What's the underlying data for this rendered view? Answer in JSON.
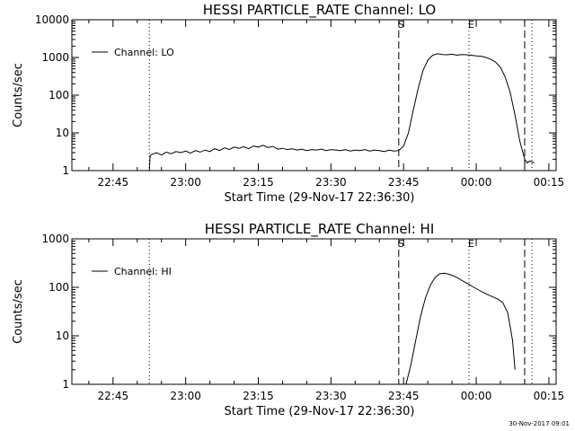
{
  "timestamp": "30-Nov-2017 09:01",
  "chart_data": [
    {
      "type": "line",
      "title": "HESSI PARTICLE_RATE Channel: LO",
      "xlabel": "Start Time (29-Nov-17 22:36:30)",
      "ylabel": "Counts/sec",
      "yscale": "log",
      "ylim": [
        1,
        10000
      ],
      "xlim": [
        "22:36:30",
        "00:16:30"
      ],
      "x_ticks": [
        "22:45",
        "23:00",
        "23:15",
        "23:30",
        "23:45",
        "00:00",
        "00:15"
      ],
      "y_ticks": [
        "1",
        "10",
        "100",
        "1000",
        "10000"
      ],
      "series": [
        {
          "name": "Channel: LO",
          "x": [
            "22:52:30",
            "22:52:40",
            "22:53:00",
            "22:54:00",
            "22:55:00",
            "22:56:00",
            "22:57:00",
            "22:58:00",
            "22:59:00",
            "23:00:00",
            "23:01:00",
            "23:02:00",
            "23:03:00",
            "23:04:00",
            "23:05:00",
            "23:06:00",
            "23:07:00",
            "23:08:00",
            "23:09:00",
            "23:10:00",
            "23:11:00",
            "23:12:00",
            "23:13:00",
            "23:14:00",
            "23:15:00",
            "23:16:00",
            "23:17:00",
            "23:18:00",
            "23:19:00",
            "23:20:00",
            "23:21:00",
            "23:22:00",
            "23:23:00",
            "23:24:00",
            "23:25:00",
            "23:26:00",
            "23:27:00",
            "23:28:00",
            "23:29:00",
            "23:30:00",
            "23:31:00",
            "23:32:00",
            "23:33:00",
            "23:34:00",
            "23:35:00",
            "23:36:00",
            "23:37:00",
            "23:38:00",
            "23:39:00",
            "23:40:00",
            "23:41:00",
            "23:42:00",
            "23:43:00",
            "23:44:00",
            "23:45:00",
            "23:46:00",
            "23:47:00",
            "23:48:00",
            "23:49:00",
            "23:50:00",
            "23:51:00",
            "23:52:00",
            "23:53:00",
            "23:54:00",
            "23:55:00",
            "23:56:00",
            "23:57:00",
            "23:58:00",
            "23:59:00",
            "00:00:00",
            "00:01:00",
            "00:02:00",
            "00:03:00",
            "00:04:00",
            "00:05:00",
            "00:06:00",
            "00:07:00",
            "00:08:00",
            "00:09:00",
            "00:10:00",
            "00:10:30",
            "00:11:00",
            "00:12:00"
          ],
          "y": [
            1,
            2.5,
            2.7,
            3.0,
            2.6,
            3.1,
            2.8,
            3.2,
            3.0,
            3.3,
            2.9,
            3.4,
            3.1,
            3.5,
            3.2,
            3.8,
            3.4,
            4.0,
            3.6,
            4.2,
            3.9,
            4.3,
            3.8,
            4.5,
            4.2,
            4.7,
            4.1,
            4.4,
            3.7,
            3.9,
            3.6,
            3.8,
            3.5,
            3.7,
            3.4,
            3.6,
            3.5,
            3.7,
            3.4,
            3.6,
            3.5,
            3.4,
            3.6,
            3.3,
            3.5,
            3.4,
            3.6,
            3.3,
            3.5,
            3.4,
            3.2,
            3.5,
            3.3,
            3.4,
            4.5,
            10,
            40,
            150,
            450,
            850,
            1150,
            1250,
            1200,
            1180,
            1220,
            1150,
            1200,
            1180,
            1150,
            1100,
            1080,
            1000,
            900,
            750,
            550,
            300,
            120,
            30,
            6,
            2,
            1.6,
            1.8,
            1.6
          ]
        }
      ],
      "vlines": [
        {
          "x": "22:52:30",
          "style": "dotted",
          "label": ""
        },
        {
          "x": "23:44:00",
          "style": "dashed",
          "label": "S"
        },
        {
          "x": "23:58:30",
          "style": "dotted",
          "label": "E"
        },
        {
          "x": "00:10:00",
          "style": "dashed",
          "label": ""
        },
        {
          "x": "00:11:30",
          "style": "dotted",
          "label": ""
        }
      ],
      "legend_position": "top-left",
      "grid": false
    },
    {
      "type": "line",
      "title": "HESSI PARTICLE_RATE Channel: HI",
      "xlabel": "Start Time (29-Nov-17 22:36:30)",
      "ylabel": "Counts/sec",
      "yscale": "log",
      "ylim": [
        1,
        1000
      ],
      "xlim": [
        "22:36:30",
        "00:16:30"
      ],
      "x_ticks": [
        "22:45",
        "23:00",
        "23:15",
        "23:30",
        "23:45",
        "00:00",
        "00:15"
      ],
      "y_ticks": [
        "1",
        "10",
        "100",
        "1000"
      ],
      "series": [
        {
          "name": "Channel: HI",
          "x": [
            "23:45:30",
            "23:46:30",
            "23:47:30",
            "23:48:30",
            "23:49:30",
            "23:50:30",
            "23:51:30",
            "23:52:30",
            "23:53:30",
            "23:54:30",
            "23:55:30",
            "23:56:30",
            "23:57:30",
            "23:58:30",
            "23:59:30",
            "00:00:30",
            "00:01:30",
            "00:02:30",
            "00:03:30",
            "00:04:30",
            "00:05:30",
            "00:06:30",
            "00:07:30",
            "00:08:00"
          ],
          "y": [
            1,
            2.5,
            8,
            25,
            60,
            110,
            160,
            190,
            195,
            185,
            170,
            150,
            130,
            115,
            100,
            88,
            78,
            70,
            63,
            57,
            48,
            30,
            8,
            2
          ]
        }
      ],
      "vlines": [
        {
          "x": "22:52:30",
          "style": "dotted",
          "label": ""
        },
        {
          "x": "23:44:00",
          "style": "dashed",
          "label": "S"
        },
        {
          "x": "23:58:30",
          "style": "dotted",
          "label": "E"
        },
        {
          "x": "00:10:00",
          "style": "dashed",
          "label": ""
        },
        {
          "x": "00:11:30",
          "style": "dotted",
          "label": ""
        }
      ],
      "legend_position": "top-left",
      "grid": false
    }
  ]
}
